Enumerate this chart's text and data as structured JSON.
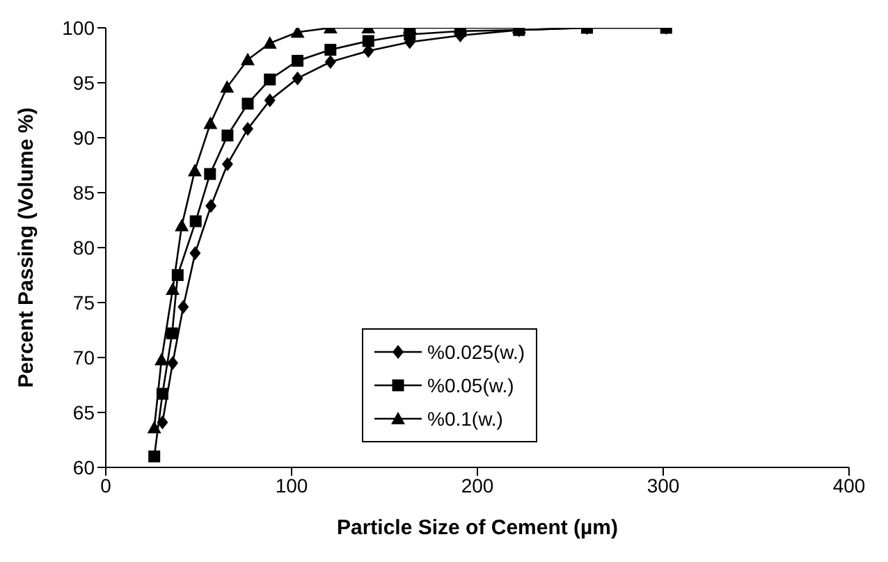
{
  "chart_data": {
    "type": "line",
    "xlabel": "Particle Size of Cement (µm)",
    "ylabel": "Percent Passing (Volume %)",
    "xlim": [
      0,
      400
    ],
    "xticks": [
      0,
      100,
      200,
      300,
      400
    ],
    "ylim": [
      60,
      100
    ],
    "yticks": [
      60,
      65,
      70,
      75,
      80,
      85,
      90,
      95,
      100
    ],
    "grid": false,
    "legend": "bottom",
    "series": [
      {
        "name": "%0.025(w.)",
        "color": "#000000",
        "marker": "diamond",
        "x": [
          30.5,
          36,
          41.7,
          48.1,
          56.6,
          65.5,
          76.4,
          88.3,
          103.2,
          120.9,
          141.3,
          163.6,
          190.8,
          222.4,
          259,
          301.6
        ],
        "values": [
          64.1,
          69.5,
          74.6,
          79.5,
          83.8,
          87.6,
          90.8,
          93.4,
          95.4,
          96.9,
          97.9,
          98.7,
          99.3,
          99.8,
          100,
          100
        ]
      },
      {
        "name": "%0.05(w.)",
        "color": "#000000",
        "marker": "square",
        "x": [
          26.1,
          30.5,
          35.7,
          38.7,
          48.4,
          56.1,
          65.5,
          76.4,
          88.3,
          103.2,
          120.9,
          141.3,
          163.6,
          190.8,
          222.4,
          259,
          301.6
        ],
        "values": [
          61.0,
          66.7,
          72.2,
          77.5,
          82.4,
          86.7,
          90.2,
          93.1,
          95.3,
          97.0,
          98.0,
          98.8,
          99.4,
          99.7,
          99.8,
          100,
          100
        ]
      },
      {
        "name": "%0.1(w.)",
        "color": "#000000",
        "marker": "triangle",
        "x": [
          26.1,
          30,
          36,
          40.9,
          47.9,
          56.3,
          65.3,
          76.4,
          88.3,
          103.2,
          120.9,
          141.3,
          163.6,
          190.8,
          222.4
        ],
        "values": [
          63.6,
          69.8,
          76.2,
          82.0,
          87.0,
          91.3,
          94.6,
          97.1,
          98.6,
          99.6,
          100,
          100,
          100,
          100,
          100
        ]
      }
    ]
  }
}
